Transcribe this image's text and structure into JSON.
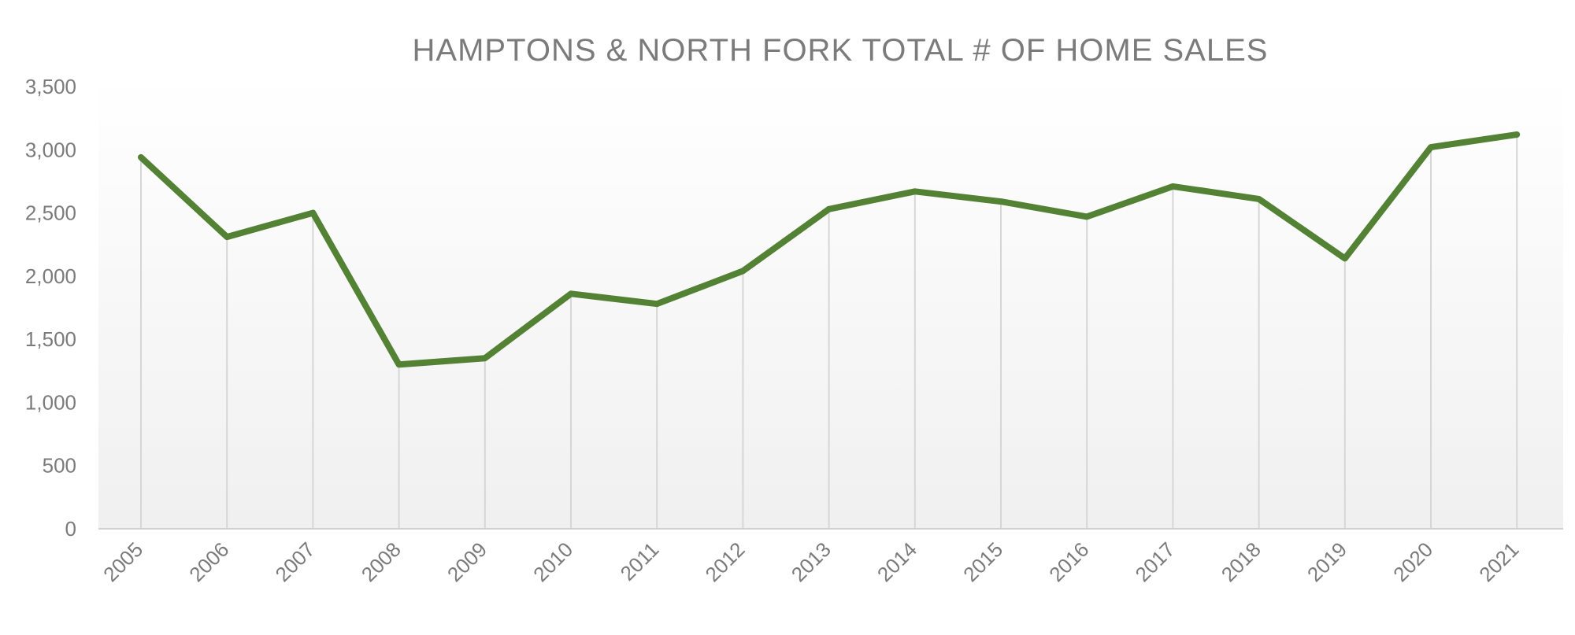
{
  "chart_data": {
    "type": "line",
    "title": "HAMPTONS & NORTH FORK TOTAL # OF HOME SALES",
    "xlabel": "",
    "ylabel": "",
    "categories": [
      "2005",
      "2006",
      "2007",
      "2008",
      "2009",
      "2010",
      "2011",
      "2012",
      "2013",
      "2014",
      "2015",
      "2016",
      "2017",
      "2018",
      "2019",
      "2020",
      "2021"
    ],
    "series": [
      {
        "values": [
          2940,
          2310,
          2500,
          1300,
          1350,
          1860,
          1780,
          2040,
          2530,
          2670,
          2590,
          2470,
          2710,
          2610,
          2140,
          3020,
          3120
        ]
      }
    ],
    "ylim": [
      0,
      3500
    ],
    "yticks": [
      0,
      500,
      1000,
      1500,
      2000,
      2500,
      3000,
      3500
    ],
    "ytick_labels": [
      "0",
      "500",
      "1,000",
      "1,500",
      "2,000",
      "2,500",
      "3,000",
      "3,500"
    ],
    "grid": "vertical",
    "legend": "none",
    "colors": {
      "line": "#548235",
      "background_top": "#ffffff",
      "background_bottom": "#f0f0f0"
    }
  }
}
